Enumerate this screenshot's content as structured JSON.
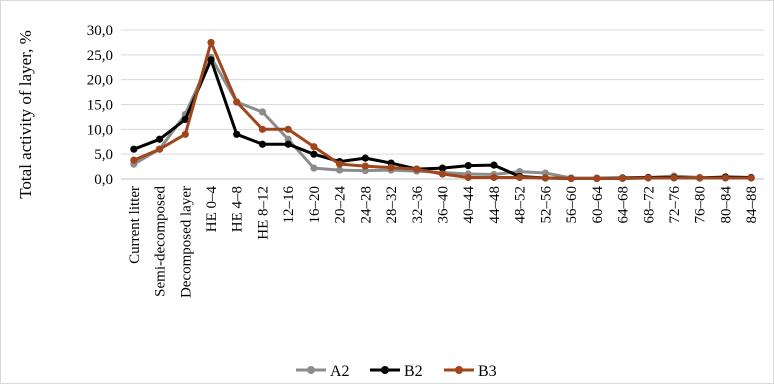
{
  "chart_data": {
    "type": "line",
    "title": "",
    "xlabel": "",
    "ylabel": "Total activity of layer, %",
    "ylim": [
      0,
      30
    ],
    "ytick_step": 5,
    "ytick_labels": [
      "0,0",
      "5,0",
      "10,0",
      "15,0",
      "20,0",
      "25,0",
      "30,0"
    ],
    "grid": true,
    "legend_position": "bottom",
    "categories": [
      "Current litter",
      "Semi-decomposed",
      "Decomposed layer",
      "HE 0–4",
      "HE 4–8",
      "HE 8–12",
      "12–16",
      "16–20",
      "20–24",
      "24–28",
      "28–32",
      "32–36",
      "36–40",
      "40–44",
      "44–48",
      "48–52",
      "52–56",
      "56–60",
      "60–64",
      "64–68",
      "68–72",
      "72–76",
      "76–80",
      "80–84",
      "84–88"
    ],
    "series": [
      {
        "name": "A2",
        "color": "#8c8c8c",
        "values": [
          3.0,
          6.0,
          13.0,
          24.5,
          15.5,
          13.5,
          8.0,
          2.2,
          1.8,
          1.7,
          1.8,
          1.6,
          1.3,
          1.0,
          0.9,
          1.5,
          1.2,
          0.2,
          0.2,
          0.2,
          0.3,
          0.6,
          0.3,
          0.3,
          0.2
        ]
      },
      {
        "name": "B2",
        "color": "#000000",
        "values": [
          6.0,
          8.0,
          12.0,
          24.0,
          9.0,
          7.0,
          7.0,
          5.0,
          3.5,
          4.2,
          3.2,
          2.0,
          2.2,
          2.7,
          2.8,
          0.5,
          0.2,
          0.1,
          0.1,
          0.2,
          0.3,
          0.3,
          0.2,
          0.4,
          0.3
        ]
      },
      {
        "name": "B3",
        "color": "#a0461c",
        "values": [
          3.8,
          6.0,
          9.0,
          27.5,
          15.5,
          10.0,
          10.0,
          6.5,
          3.0,
          2.6,
          2.3,
          2.0,
          1.0,
          0.3,
          0.3,
          0.3,
          0.2,
          0.1,
          0.1,
          0.1,
          0.2,
          0.2,
          0.2,
          0.2,
          0.2
        ]
      }
    ]
  }
}
